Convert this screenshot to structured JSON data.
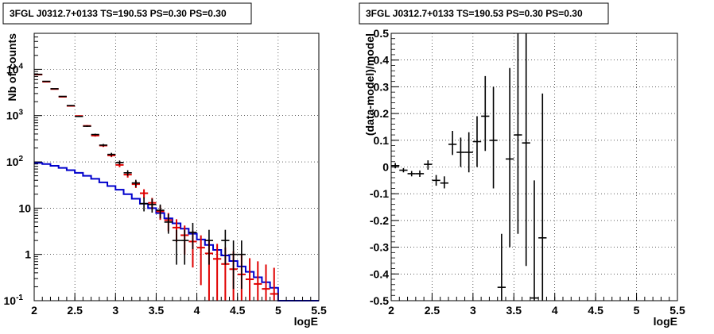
{
  "colors": {
    "data": "#000000",
    "model": "#e00000",
    "background": "#0000cc"
  },
  "chart_data": [
    {
      "type": "line",
      "title": "3FGL J0312.7+0133 TS=190.53 PS=0.30 PS=0.30",
      "xlabel": "logE",
      "ylabel": "Nb of counts",
      "xlim": [
        2,
        5.5
      ],
      "ylim": [
        0.1,
        60000
      ],
      "yscale": "log",
      "grid": true,
      "x_ticks": [
        "2",
        "2.5",
        "3",
        "3.5",
        "4",
        "4.5",
        "5",
        "5.5"
      ],
      "y_ticks": [
        {
          "label": "10",
          "exp": "-1",
          "value": 0.1
        },
        {
          "label": "1",
          "exp": "",
          "value": 1
        },
        {
          "label": "10",
          "exp": "",
          "value": 10
        },
        {
          "label": "10",
          "exp": "2",
          "value": 100
        },
        {
          "label": "10",
          "exp": "3",
          "value": 1000
        },
        {
          "label": "10",
          "exp": "4",
          "value": 10000
        }
      ],
      "series": [
        {
          "role": "data",
          "points": [
            {
              "x": 2.05,
              "y": 7800,
              "lo": 7700,
              "hi": 7900
            },
            {
              "x": 2.15,
              "y": 5500,
              "lo": 5430,
              "hi": 5570
            },
            {
              "x": 2.25,
              "y": 3800,
              "lo": 3740,
              "hi": 3860
            },
            {
              "x": 2.35,
              "y": 2600,
              "lo": 2550,
              "hi": 2650
            },
            {
              "x": 2.45,
              "y": 1650,
              "lo": 1610,
              "hi": 1690
            },
            {
              "x": 2.55,
              "y": 960,
              "lo": 930,
              "hi": 990
            },
            {
              "x": 2.65,
              "y": 590,
              "lo": 570,
              "hi": 610
            },
            {
              "x": 2.75,
              "y": 390,
              "lo": 373,
              "hi": 407
            },
            {
              "x": 2.85,
              "y": 230,
              "lo": 216,
              "hi": 244
            },
            {
              "x": 2.95,
              "y": 145,
              "lo": 133,
              "hi": 157
            },
            {
              "x": 3.05,
              "y": 97,
              "lo": 87,
              "hi": 107
            },
            {
              "x": 3.15,
              "y": 58,
              "lo": 50,
              "hi": 66
            },
            {
              "x": 3.25,
              "y": 35,
              "lo": 29,
              "hi": 41
            },
            {
              "x": 3.35,
              "y": 12.5,
              "lo": 8.5,
              "hi": 17
            },
            {
              "x": 3.45,
              "y": 12,
              "lo": 8,
              "hi": 16
            },
            {
              "x": 3.55,
              "y": 9,
              "lo": 6,
              "hi": 12
            },
            {
              "x": 3.65,
              "y": 5,
              "lo": 2.8,
              "hi": 7.5
            },
            {
              "x": 3.75,
              "y": 2,
              "lo": 0.6,
              "hi": 3.4
            },
            {
              "x": 3.85,
              "y": 2,
              "lo": 0.6,
              "hi": 3.4
            },
            {
              "x": 3.95,
              "y": 3,
              "lo": 1.3,
              "hi": 4.8
            },
            {
              "x": 4.15,
              "y": 2,
              "lo": 0.6,
              "hi": 3.4
            },
            {
              "x": 4.35,
              "y": 2,
              "lo": 0.6,
              "hi": 3.4
            },
            {
              "x": 4.45,
              "y": 1,
              "lo": 0.18,
              "hi": 2.0
            },
            {
              "x": 4.55,
              "y": 1,
              "lo": 0.18,
              "hi": 2.0
            }
          ]
        },
        {
          "role": "model",
          "points": [
            {
              "x": 2.05,
              "y": 7700
            },
            {
              "x": 2.15,
              "y": 5400
            },
            {
              "x": 2.25,
              "y": 3750
            },
            {
              "x": 2.35,
              "y": 2550
            },
            {
              "x": 2.45,
              "y": 1620
            },
            {
              "x": 2.55,
              "y": 980
            },
            {
              "x": 2.65,
              "y": 600
            },
            {
              "x": 2.75,
              "y": 370
            },
            {
              "x": 2.85,
              "y": 225
            },
            {
              "x": 2.95,
              "y": 138
            },
            {
              "x": 3.05,
              "y": 86
            },
            {
              "x": 3.15,
              "y": 53
            },
            {
              "x": 3.25,
              "y": 33
            },
            {
              "x": 3.35,
              "y": 21
            },
            {
              "x": 3.45,
              "y": 13
            },
            {
              "x": 3.55,
              "y": 8.5
            },
            {
              "x": 3.65,
              "y": 5.5
            },
            {
              "x": 3.75,
              "y": 3.8
            },
            {
              "x": 3.85,
              "y": 2.6
            },
            {
              "x": 3.95,
              "y": 1.9
            },
            {
              "x": 4.05,
              "y": 1.4
            },
            {
              "x": 4.15,
              "y": 1.05
            },
            {
              "x": 4.25,
              "y": 0.8
            },
            {
              "x": 4.35,
              "y": 0.62
            },
            {
              "x": 4.45,
              "y": 0.48
            },
            {
              "x": 4.55,
              "y": 0.37
            },
            {
              "x": 4.65,
              "y": 0.29
            },
            {
              "x": 4.75,
              "y": 0.23
            },
            {
              "x": 4.85,
              "y": 0.18
            },
            {
              "x": 4.95,
              "y": 0.14
            }
          ]
        },
        {
          "role": "background",
          "steps": [
            {
              "x0": 2.0,
              "x1": 2.1,
              "y": 95
            },
            {
              "x0": 2.1,
              "x1": 2.2,
              "y": 90
            },
            {
              "x0": 2.2,
              "x1": 2.3,
              "y": 82
            },
            {
              "x0": 2.3,
              "x1": 2.4,
              "y": 74
            },
            {
              "x0": 2.4,
              "x1": 2.5,
              "y": 66
            },
            {
              "x0": 2.5,
              "x1": 2.6,
              "y": 58
            },
            {
              "x0": 2.6,
              "x1": 2.7,
              "y": 50
            },
            {
              "x0": 2.7,
              "x1": 2.8,
              "y": 43
            },
            {
              "x0": 2.8,
              "x1": 2.9,
              "y": 36
            },
            {
              "x0": 2.9,
              "x1": 3.0,
              "y": 30
            },
            {
              "x0": 3.0,
              "x1": 3.1,
              "y": 25
            },
            {
              "x0": 3.1,
              "x1": 3.2,
              "y": 20
            },
            {
              "x0": 3.2,
              "x1": 3.3,
              "y": 16
            },
            {
              "x0": 3.3,
              "x1": 3.4,
              "y": 12.5
            },
            {
              "x0": 3.4,
              "x1": 3.5,
              "y": 10
            },
            {
              "x0": 3.5,
              "x1": 3.6,
              "y": 7.8
            },
            {
              "x0": 3.6,
              "x1": 3.7,
              "y": 6.0
            },
            {
              "x0": 3.7,
              "x1": 3.8,
              "y": 4.7
            },
            {
              "x0": 3.8,
              "x1": 3.9,
              "y": 3.6
            },
            {
              "x0": 3.9,
              "x1": 4.0,
              "y": 2.8
            },
            {
              "x0": 4.0,
              "x1": 4.1,
              "y": 2.1
            },
            {
              "x0": 4.1,
              "x1": 4.2,
              "y": 1.6
            },
            {
              "x0": 4.2,
              "x1": 4.3,
              "y": 1.25
            },
            {
              "x0": 4.3,
              "x1": 4.4,
              "y": 0.95
            },
            {
              "x0": 4.4,
              "x1": 4.5,
              "y": 0.72
            },
            {
              "x0": 4.5,
              "x1": 4.6,
              "y": 0.55
            },
            {
              "x0": 4.6,
              "x1": 4.7,
              "y": 0.42
            },
            {
              "x0": 4.7,
              "x1": 4.8,
              "y": 0.32
            },
            {
              "x0": 4.8,
              "x1": 4.9,
              "y": 0.25
            },
            {
              "x0": 4.9,
              "x1": 5.0,
              "y": 0.19
            },
            {
              "x0": 5.0,
              "x1": 5.5,
              "y": 0.1
            }
          ]
        }
      ]
    },
    {
      "type": "scatter",
      "title": "3FGL J0312.7+0133 TS=190.53 PS=0.30 PS=0.30",
      "xlabel": "logE",
      "ylabel": "(data-model)/model",
      "xlim": [
        2,
        5.5
      ],
      "ylim": [
        -0.5,
        0.5
      ],
      "grid": true,
      "x_ticks": [
        "2",
        "2.5",
        "3",
        "3.5",
        "4",
        "4.5",
        "5",
        "5.5"
      ],
      "y_ticks": [
        "-0.5",
        "-0.4",
        "-0.3",
        "-0.2",
        "-0.1",
        "0",
        "0.1",
        "0.2",
        "0.3",
        "0.4",
        "0.5"
      ],
      "series": [
        {
          "role": "residual",
          "points": [
            {
              "x": 2.05,
              "y": 0.005,
              "lo": -0.005,
              "hi": 0.015
            },
            {
              "x": 2.15,
              "y": -0.012,
              "lo": -0.02,
              "hi": -0.004
            },
            {
              "x": 2.25,
              "y": -0.025,
              "lo": -0.035,
              "hi": -0.015
            },
            {
              "x": 2.35,
              "y": -0.025,
              "lo": -0.037,
              "hi": -0.013
            },
            {
              "x": 2.45,
              "y": 0.01,
              "lo": -0.01,
              "hi": 0.025
            },
            {
              "x": 2.55,
              "y": -0.05,
              "lo": -0.07,
              "hi": -0.03
            },
            {
              "x": 2.65,
              "y": -0.06,
              "lo": -0.08,
              "hi": -0.035
            },
            {
              "x": 2.75,
              "y": 0.085,
              "lo": 0.045,
              "hi": 0.135
            },
            {
              "x": 2.85,
              "y": 0.055,
              "lo": 0.0,
              "hi": 0.11
            },
            {
              "x": 2.95,
              "y": 0.055,
              "lo": -0.02,
              "hi": 0.13
            },
            {
              "x": 3.05,
              "y": 0.095,
              "lo": 0.0,
              "hi": 0.19
            },
            {
              "x": 3.15,
              "y": 0.19,
              "lo": 0.06,
              "hi": 0.34
            },
            {
              "x": 3.25,
              "y": 0.1,
              "lo": -0.08,
              "hi": 0.3
            },
            {
              "x": 3.35,
              "y": -0.45,
              "lo": -0.5,
              "hi": -0.25
            },
            {
              "x": 3.45,
              "y": 0.03,
              "lo": -0.3,
              "hi": 0.37
            },
            {
              "x": 3.55,
              "y": 0.12,
              "lo": -0.25,
              "hi": 0.5
            },
            {
              "x": 3.65,
              "y": 0.09,
              "lo": -0.37,
              "hi": 0.5
            },
            {
              "x": 3.75,
              "y": -0.49,
              "lo": -0.5,
              "hi": -0.05
            },
            {
              "x": 3.85,
              "y": -0.265,
              "lo": -0.5,
              "hi": 0.275
            }
          ]
        }
      ]
    }
  ]
}
